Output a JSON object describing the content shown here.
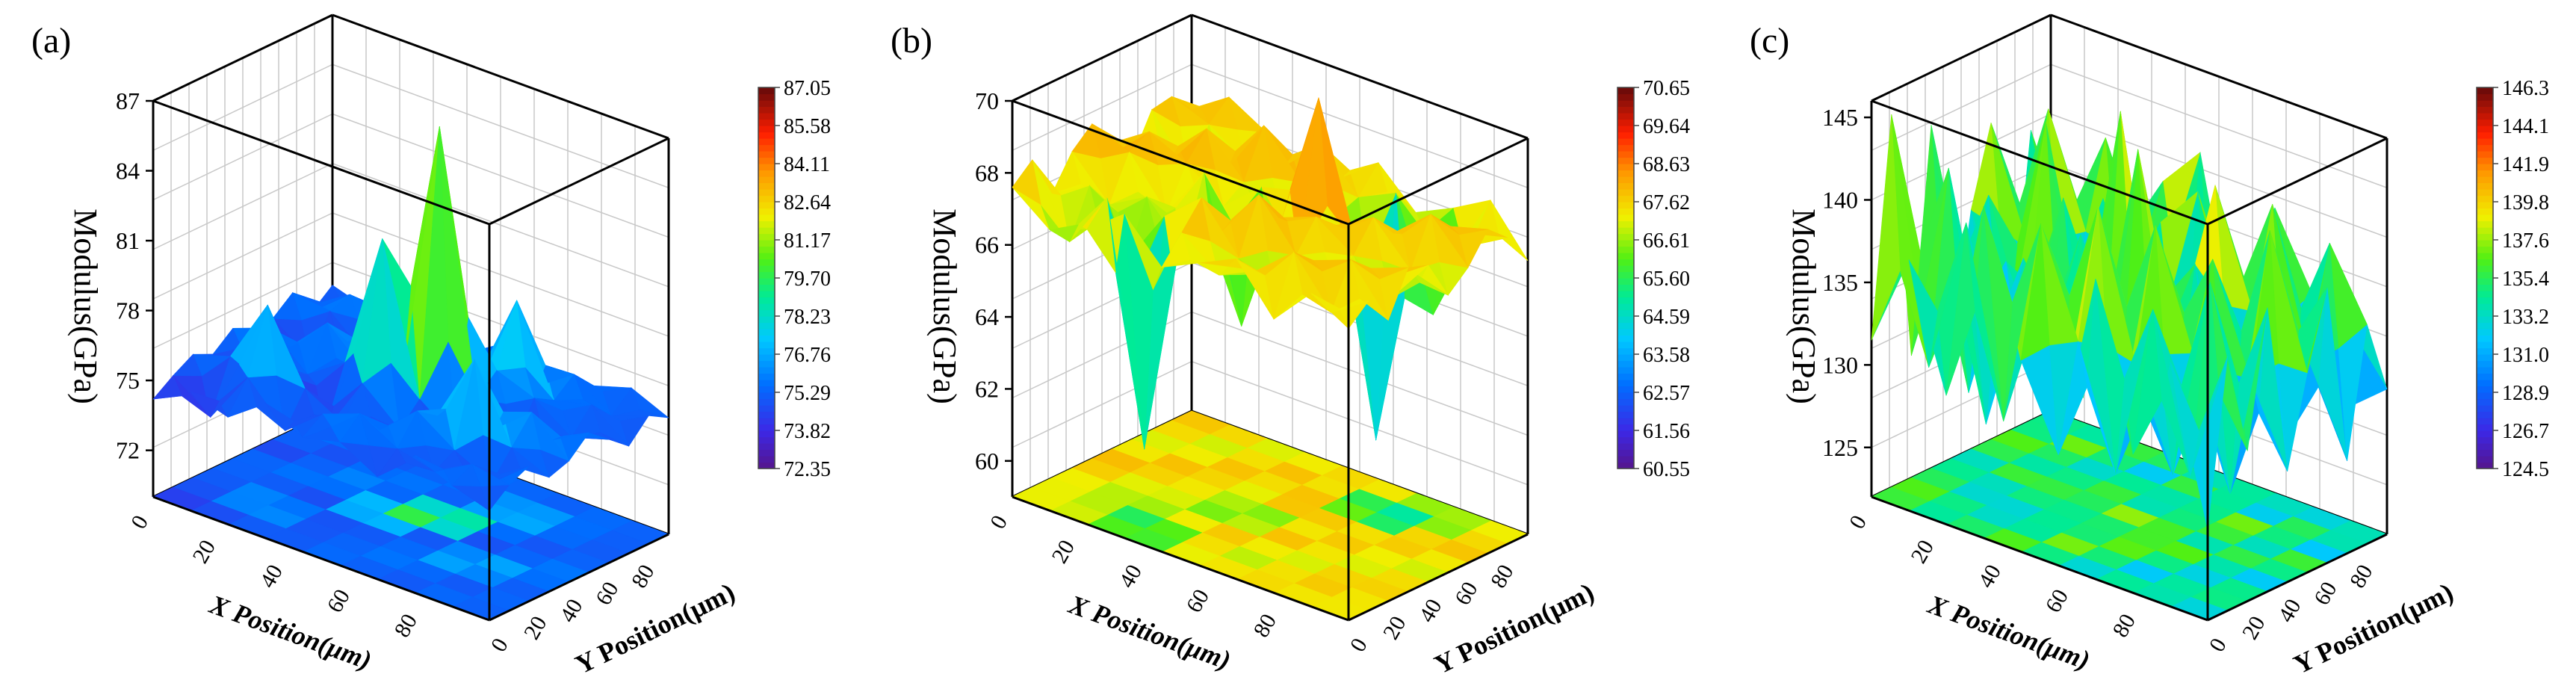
{
  "chart_data": [
    {
      "type": "surface3d",
      "panel_label": "(a)",
      "xlabel": "X Position(μm)",
      "ylabel": "Y Position(μm)",
      "zlabel": "Modulus(GPa)",
      "x_ticks": [
        "0",
        "20",
        "40",
        "60",
        "80"
      ],
      "y_ticks": [
        "0",
        "20",
        "40",
        "60",
        "80"
      ],
      "z_ticks": [
        "72",
        "75",
        "78",
        "81",
        "84",
        "87"
      ],
      "zlim": [
        70,
        87
      ],
      "colorbar_ticks": [
        "87.05",
        "85.58",
        "84.11",
        "82.64",
        "81.17",
        "79.70",
        "78.23",
        "76.76",
        "75.29",
        "73.82",
        "72.35"
      ],
      "colorbar_range": [
        72.35,
        87.05
      ],
      "x": [
        0,
        10,
        20,
        30,
        40,
        50,
        60,
        70,
        80,
        90
      ],
      "y": [
        0,
        10,
        20,
        30,
        40,
        50,
        60,
        70,
        80,
        90
      ],
      "z": [
        [
          74.2,
          74.8,
          75.3,
          74.9,
          75.6,
          74.5,
          75.2,
          75.9,
          74.7,
          75.4
        ],
        [
          75.1,
          73.6,
          75.8,
          74.4,
          76.2,
          75.0,
          74.1,
          75.7,
          76.0,
          74.9
        ],
        [
          74.6,
          75.9,
          78.6,
          75.2,
          74.8,
          76.6,
          75.4,
          74.3,
          75.8,
          75.5
        ],
        [
          75.8,
          74.2,
          75.6,
          73.4,
          75.9,
          75.1,
          76.8,
          75.6,
          74.6,
          75.9
        ],
        [
          74.9,
          75.5,
          74.7,
          76.0,
          81.8,
          75.3,
          74.5,
          75.9,
          75.2,
          74.8
        ],
        [
          75.3,
          76.1,
          75.0,
          74.6,
          75.5,
          86.8,
          75.8,
          74.9,
          76.2,
          75.6
        ],
        [
          74.4,
          75.2,
          76.4,
          75.8,
          74.3,
          75.7,
          76.5,
          79.1,
          75.0,
          74.7
        ],
        [
          75.9,
          74.8,
          75.3,
          78.8,
          75.4,
          74.2,
          75.9,
          75.4,
          76.1,
          75.2
        ],
        [
          75.2,
          75.7,
          74.5,
          75.6,
          76.7,
          75.1,
          74.8,
          75.8,
          74.9,
          75.7
        ],
        [
          74.7,
          75.4,
          75.8,
          74.9,
          75.2,
          76.0,
          75.3,
          74.6,
          75.5,
          75.0
        ]
      ]
    },
    {
      "type": "surface3d",
      "panel_label": "(b)",
      "xlabel": "X Position(μm)",
      "ylabel": "Y Position(μm)",
      "zlabel": "Modulus(GPa)",
      "x_ticks": [
        "0",
        "20",
        "40",
        "60",
        "80"
      ],
      "y_ticks": [
        "0",
        "20",
        "40",
        "60",
        "80"
      ],
      "z_ticks": [
        "60",
        "62",
        "64",
        "66",
        "68",
        "70"
      ],
      "zlim": [
        59,
        70
      ],
      "colorbar_ticks": [
        "70.65",
        "69.64",
        "68.63",
        "67.62",
        "66.61",
        "65.60",
        "64.59",
        "63.58",
        "62.57",
        "61.56",
        "60.55"
      ],
      "colorbar_range": [
        60.55,
        70.65
      ],
      "x": [
        0,
        10,
        20,
        30,
        40,
        50,
        60,
        70,
        80,
        90
      ],
      "y": [
        0,
        10,
        20,
        30,
        40,
        50,
        60,
        70,
        80,
        90
      ],
      "z": [
        [
          67.6,
          68.1,
          66.9,
          67.8,
          68.3,
          67.2,
          66.8,
          67.9,
          68.0,
          67.4
        ],
        [
          66.8,
          66.2,
          67.5,
          66.7,
          67.9,
          68.2,
          67.1,
          66.5,
          67.6,
          68.1
        ],
        [
          67.2,
          67.8,
          65.8,
          67.3,
          66.6,
          67.7,
          68.4,
          67.0,
          66.9,
          67.5
        ],
        [
          68.0,
          61.2,
          67.4,
          66.2,
          68.1,
          66.9,
          67.3,
          68.6,
          67.2,
          66.7
        ],
        [
          66.9,
          67.6,
          68.3,
          67.1,
          64.2,
          67.8,
          66.6,
          67.4,
          68.2,
          67.0
        ],
        [
          67.4,
          66.8,
          67.0,
          68.5,
          67.6,
          66.3,
          70.4,
          66.9,
          67.1,
          67.8
        ],
        [
          67.9,
          67.3,
          66.4,
          67.2,
          68.0,
          67.5,
          66.7,
          61.0,
          67.6,
          66.8
        ],
        [
          66.6,
          68.2,
          67.7,
          66.9,
          67.3,
          68.1,
          67.4,
          66.8,
          64.6,
          67.3
        ],
        [
          67.7,
          66.9,
          68.1,
          67.6,
          66.5,
          67.0,
          68.3,
          67.7,
          66.9,
          67.9
        ],
        [
          67.1,
          67.6,
          66.8,
          68.0,
          67.8,
          66.7,
          67.2,
          68.0,
          67.5,
          66.6
        ]
      ]
    },
    {
      "type": "surface3d",
      "panel_label": "(c)",
      "xlabel": "X Position(μm)",
      "ylabel": "Y Position(μm)",
      "zlabel": "Modulus(GPa)",
      "x_ticks": [
        "0",
        "20",
        "40",
        "60",
        "80"
      ],
      "y_ticks": [
        "0",
        "20",
        "40",
        "60",
        "80"
      ],
      "z_ticks": [
        "125",
        "130",
        "135",
        "140",
        "145"
      ],
      "zlim": [
        122,
        146
      ],
      "colorbar_ticks": [
        "146.3",
        "144.1",
        "141.9",
        "139.8",
        "137.6",
        "135.4",
        "133.2",
        "131.0",
        "128.9",
        "126.7",
        "124.5"
      ],
      "colorbar_range": [
        124.5,
        146.3
      ],
      "x": [
        0,
        10,
        20,
        30,
        40,
        50,
        60,
        70,
        80,
        90
      ],
      "y": [
        0,
        10,
        20,
        30,
        40,
        50,
        60,
        70,
        80,
        90
      ],
      "z": [
        [
          131.5,
          144.6,
          129.4,
          142.8,
          128.6,
          136.5,
          141.2,
          127.9,
          139.6,
          133.8
        ],
        [
          137.2,
          130.1,
          141.6,
          127.4,
          138.8,
          129.9,
          134.4,
          142.3,
          128.8,
          136.1
        ],
        [
          129.8,
          139.7,
          126.9,
          136.2,
          131.4,
          143.5,
          128.2,
          135.7,
          140.8,
          130.6
        ],
        [
          142.1,
          128.5,
          137.8,
          130.9,
          140.3,
          127.6,
          139.1,
          129.5,
          133.2,
          138.4
        ],
        [
          133.6,
          141.3,
          129.2,
          139.5,
          127.3,
          145.8,
          130.7,
          137.9,
          128.1,
          141.0
        ],
        [
          128.7,
          135.0,
          142.6,
          128.3,
          144.9,
          131.8,
          126.5,
          140.6,
          136.3,
          129.4
        ],
        [
          140.2,
          127.8,
          133.9,
          141.7,
          129.6,
          138.2,
          142.4,
          128.4,
          131.7,
          139.3
        ],
        [
          130.4,
          138.6,
          128.0,
          134.8,
          139.9,
          127.2,
          135.6,
          141.5,
          127.7,
          134.9
        ],
        [
          136.8,
          129.3,
          140.5,
          127.1,
          133.5,
          141.9,
          129.0,
          132.6,
          139.4,
          128.9
        ],
        [
          127.5,
          137.4,
          131.1,
          139.2,
          128.7,
          134.1,
          138.7,
          127.6,
          135.3,
          130.8
        ]
      ]
    }
  ]
}
